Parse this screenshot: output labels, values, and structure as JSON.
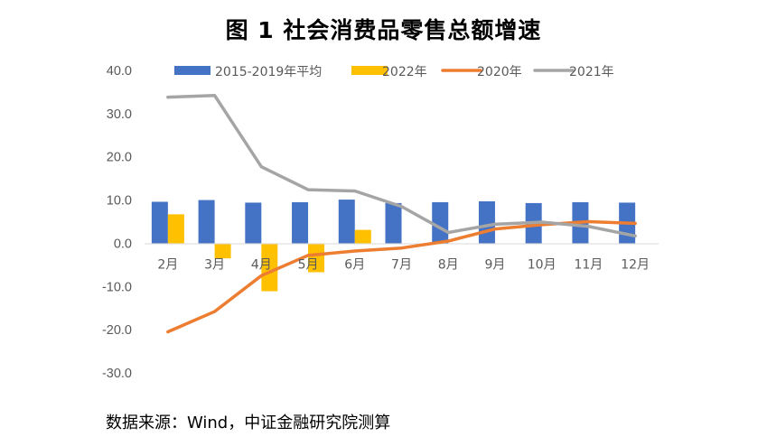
{
  "title": "图 1  社会消费品零售总额增速",
  "source": "数据来源：Wind，中证金融研究院测算",
  "chart_data": {
    "type": "bar",
    "title": "图 1  社会消费品零售总额增速",
    "xlabel": "",
    "ylabel": "",
    "ylim": [
      -30,
      40
    ],
    "yticks": [
      "40.0",
      "30.0",
      "20.0",
      "10.0",
      "0.0",
      "-10.0",
      "-20.0",
      "-30.0"
    ],
    "grid": false,
    "legend_position": "top",
    "categories": [
      "2月",
      "3月",
      "4月",
      "5月",
      "6月",
      "7月",
      "8月",
      "9月",
      "10月",
      "11月",
      "12月"
    ],
    "series": [
      {
        "name": "2015-2019年平均",
        "type": "bar",
        "color": "#4472C4",
        "values": [
          9.6,
          10.0,
          9.4,
          9.5,
          10.1,
          9.3,
          9.5,
          9.7,
          9.3,
          9.5,
          9.4
        ]
      },
      {
        "name": "2022年",
        "type": "bar",
        "color": "#FFC000",
        "values": [
          6.7,
          -3.5,
          -11.1,
          -6.7,
          3.1,
          null,
          null,
          null,
          null,
          null,
          null
        ]
      },
      {
        "name": "2020年",
        "type": "line",
        "color": "#ED7D31",
        "values": [
          -20.5,
          -15.8,
          -7.5,
          -2.8,
          -1.8,
          -1.1,
          0.5,
          3.3,
          4.3,
          5.0,
          4.6
        ]
      },
      {
        "name": "2021年",
        "type": "line",
        "color": "#A5A5A5",
        "values": [
          33.8,
          34.2,
          17.7,
          12.4,
          12.1,
          8.5,
          2.5,
          4.4,
          4.9,
          3.9,
          1.7
        ]
      }
    ]
  }
}
